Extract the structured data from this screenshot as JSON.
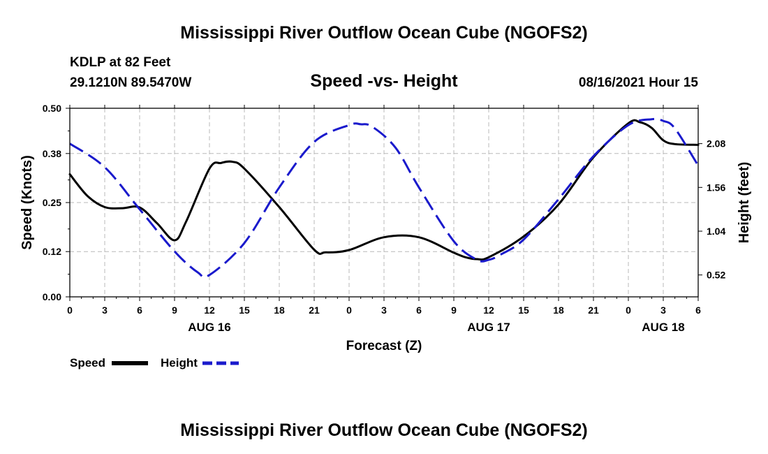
{
  "page": {
    "main_title": "Mississippi River Outflow Ocean Cube (NGOFS2)",
    "footer_title": "Mississippi River Outflow Ocean Cube (NGOFS2)",
    "station": "KDLP at 82 Feet",
    "coords": "29.1210N  89.5470W",
    "chart_title": "Speed -vs- Height",
    "datetime": "08/16/2021 Hour 15"
  },
  "chart_data": {
    "type": "line",
    "title": "Speed -vs- Height",
    "xlabel": "Forecast (Z)",
    "ylabel_left": "Speed (Knots)",
    "ylabel_right": "Height (feet)",
    "x_unit": "hours since 08/16 00Z",
    "xlim": [
      0,
      54
    ],
    "ylim_left": [
      0,
      0.5
    ],
    "ylim_right": [
      0.26,
      2.5
    ],
    "x_ticks": [
      0,
      3,
      6,
      9,
      12,
      15,
      18,
      21,
      24,
      27,
      30,
      33,
      36,
      39,
      42,
      45,
      48,
      51,
      54
    ],
    "x_tick_labels": [
      "0",
      "3",
      "6",
      "9",
      "12",
      "15",
      "18",
      "21",
      "0",
      "3",
      "6",
      "9",
      "12",
      "15",
      "18",
      "21",
      "0",
      "3",
      "6"
    ],
    "date_labels": [
      {
        "label": "AUG 16",
        "x": 12
      },
      {
        "label": "AUG 17",
        "x": 36
      },
      {
        "label": "AUG 18",
        "x": 51
      }
    ],
    "y_ticks_left": [
      0.0,
      0.12,
      0.25,
      0.38,
      0.5
    ],
    "y_tick_labels_left": [
      "0.00",
      "0.12",
      "0.25",
      "0.38",
      "0.50"
    ],
    "y_ticks_right": [
      0.52,
      1.04,
      1.56,
      2.08
    ],
    "y_tick_labels_right": [
      "0.52",
      "1.04",
      "1.56",
      "2.08"
    ],
    "grid": true,
    "legend": [
      {
        "name": "Speed",
        "color": "#000000",
        "style": "solid"
      },
      {
        "name": "Height",
        "color": "#1a1acc",
        "style": "dashed"
      }
    ],
    "series": [
      {
        "name": "Speed",
        "axis": "left",
        "color": "#000000",
        "x": [
          0,
          1.5,
          3,
          4.5,
          6,
          7.5,
          9,
          10,
          12,
          13,
          14,
          15,
          18,
          21,
          22,
          24,
          27,
          30,
          33,
          34,
          35,
          36,
          39,
          42,
          45,
          48,
          49,
          50,
          51,
          52,
          54
        ],
        "values": [
          0.325,
          0.268,
          0.238,
          0.235,
          0.237,
          0.195,
          0.15,
          0.2,
          0.34,
          0.355,
          0.358,
          0.34,
          0.238,
          0.125,
          0.118,
          0.124,
          0.158,
          0.158,
          0.117,
          0.105,
          0.1,
          0.105,
          0.16,
          0.245,
          0.37,
          0.46,
          0.463,
          0.448,
          0.415,
          0.405,
          0.403
        ]
      },
      {
        "name": "Height",
        "axis": "right",
        "color": "#1a1acc",
        "x": [
          0,
          3,
          6,
          9,
          11,
          12,
          15,
          18,
          21,
          24,
          25,
          26,
          28,
          30,
          33,
          35,
          36,
          37,
          39,
          42,
          45,
          48,
          50,
          51,
          52,
          54
        ],
        "values": [
          2.08,
          1.8,
          1.3,
          0.8,
          0.55,
          0.52,
          0.9,
          1.56,
          2.1,
          2.3,
          2.31,
          2.28,
          2.03,
          1.56,
          0.92,
          0.7,
          0.7,
          0.76,
          0.94,
          1.42,
          1.93,
          2.3,
          2.37,
          2.35,
          2.26,
          1.82
        ]
      }
    ]
  }
}
